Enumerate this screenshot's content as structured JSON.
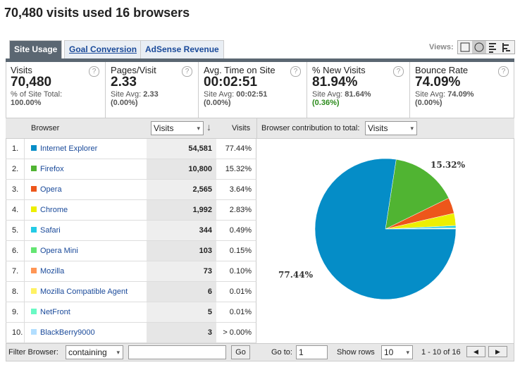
{
  "title": "70,480 visits used 16 browsers",
  "tabs": [
    "Site Usage",
    "Goal Conversion",
    "AdSense Revenue"
  ],
  "views_label": "Views:",
  "metrics": [
    {
      "label": "Visits",
      "value": "70,480",
      "note": "% of Site Total:",
      "note_value": "100.00%"
    },
    {
      "label": "Pages/Visit",
      "value": "2.33",
      "note": "Site Avg:",
      "note_value": "2.33",
      "change": "(0.00%)"
    },
    {
      "label": "Avg. Time on Site",
      "value": "00:02:51",
      "note": "Site Avg:",
      "note_value": "00:02:51",
      "change": "(0.00%)"
    },
    {
      "label": "% New Visits",
      "value": "81.94%",
      "note": "Site Avg:",
      "note_value": "81.64%",
      "change": "(0.36%)",
      "change_color": "#2a8a1a"
    },
    {
      "label": "Bounce Rate",
      "value": "74.09%",
      "note": "Site Avg:",
      "note_value": "74.09%",
      "change": "(0.00%)"
    }
  ],
  "table": {
    "header": {
      "browser": "Browser",
      "metric_select": "Visits",
      "share": "Visits"
    },
    "rows": [
      {
        "rank": "1.",
        "browser": "Internet Explorer",
        "color": "#058dc7",
        "visits": "54,581",
        "share": 77.44,
        "share_label": "77.44%"
      },
      {
        "rank": "2.",
        "browser": "Firefox",
        "color": "#50b432",
        "visits": "10,800",
        "share": 15.32,
        "share_label": "15.32%"
      },
      {
        "rank": "3.",
        "browser": "Opera",
        "color": "#ed561b",
        "visits": "2,565",
        "share": 3.64,
        "share_label": "3.64%"
      },
      {
        "rank": "4.",
        "browser": "Chrome",
        "color": "#edef00",
        "visits": "1,992",
        "share": 2.83,
        "share_label": "2.83%"
      },
      {
        "rank": "5.",
        "browser": "Safari",
        "color": "#24cbe5",
        "visits": "344",
        "share": 0.49,
        "share_label": "0.49%"
      },
      {
        "rank": "6.",
        "browser": "Opera Mini",
        "color": "#64e572",
        "visits": "103",
        "share": 0.15,
        "share_label": "0.15%"
      },
      {
        "rank": "7.",
        "browser": "Mozilla",
        "color": "#ff9655",
        "visits": "73",
        "share": 0.1,
        "share_label": "0.10%"
      },
      {
        "rank": "8.",
        "browser": "Mozilla Compatible Agent",
        "color": "#fff263",
        "visits": "6",
        "share": 0.01,
        "share_label": "0.01%"
      },
      {
        "rank": "9.",
        "browser": "NetFront",
        "color": "#6af9c4",
        "visits": "5",
        "share": 0.01,
        "share_label": "0.01%"
      },
      {
        "rank": "10.",
        "browser": "BlackBerry9000",
        "color": "#b2deff",
        "visits": "3",
        "share": 0.004,
        "share_label": "> 0.00%"
      }
    ]
  },
  "pie": {
    "label": "Browser contribution to total:",
    "select": "Visits"
  },
  "footer": {
    "filter_label": "Filter Browser:",
    "filter_select": "containing",
    "go": "Go",
    "goto_label": "Go to:",
    "goto_value": "1",
    "rows_label": "Show rows",
    "rows_value": "10",
    "range": "1 - 10 of 16"
  }
}
